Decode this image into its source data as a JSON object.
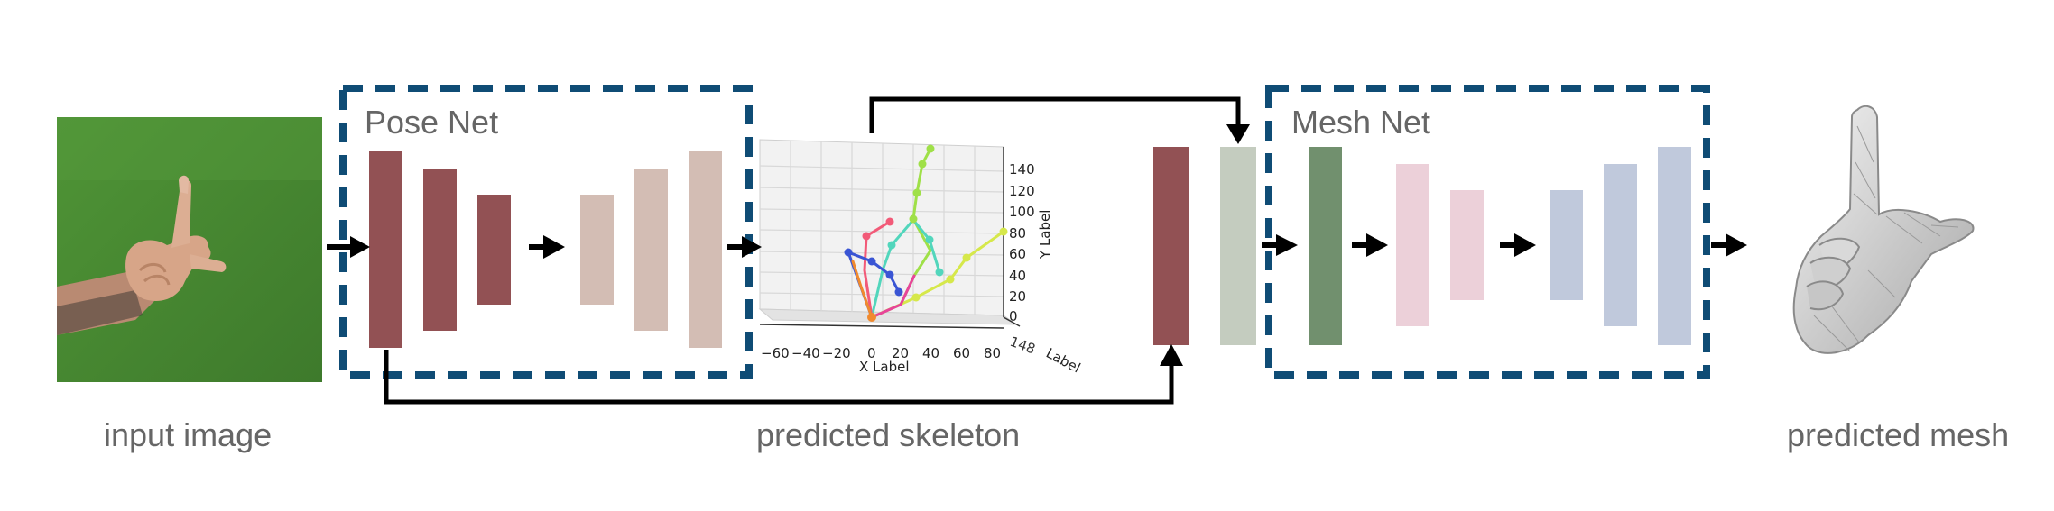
{
  "colors": {
    "frame": "#0f4c75",
    "dark_red": "#925154",
    "light_tan": "#d3bdb4",
    "sage": "#c4ccbf",
    "green": "#71906e",
    "pink": "#ecd0d9",
    "blue_gray": "#c0c9dc",
    "arrow": "#000000"
  },
  "labels": {
    "input_image": "input image",
    "predicted_skeleton": "predicted skeleton",
    "predicted_mesh": "predicted mesh",
    "pose_net": "Pose Net",
    "mesh_net": "Mesh Net"
  },
  "icons": {
    "input_image": "hand-photo-green-background",
    "predicted_mesh": "3d-hand-mesh"
  },
  "chart_data": {
    "type": "scatter",
    "projection": "3d",
    "xlabel": "X Label",
    "ylabel": "Y Label",
    "zlabel": "Label",
    "x_ticks": [
      "−60",
      "−40",
      "−20",
      "0",
      "20",
      "40",
      "60",
      "80"
    ],
    "y_ticks": [
      "0",
      "20",
      "40",
      "60",
      "80",
      "100",
      "120",
      "140"
    ],
    "grid": true
  }
}
